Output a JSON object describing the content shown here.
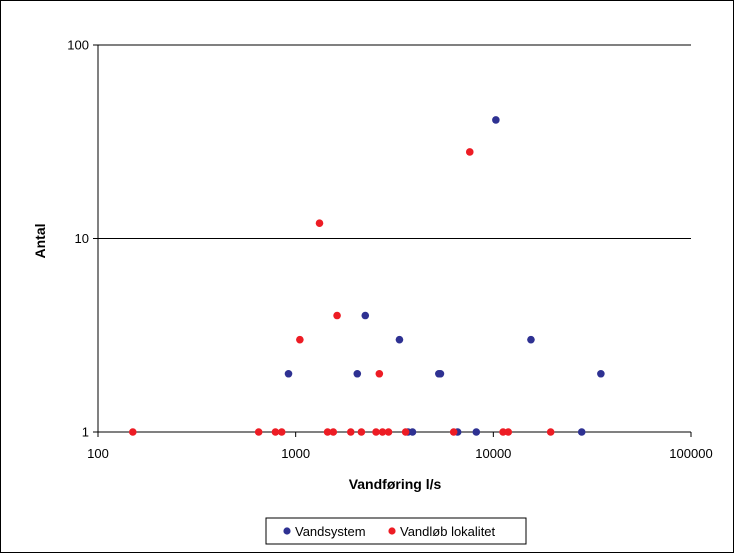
{
  "chart_data": {
    "type": "scatter",
    "title": "",
    "xlabel": "Vandføring l/s",
    "ylabel": "Antal",
    "x_scale": "log",
    "y_scale": "log",
    "xlim": [
      100,
      100000
    ],
    "ylim": [
      1,
      100
    ],
    "x_ticks": [
      100,
      1000,
      10000,
      100000
    ],
    "x_tick_labels": [
      "100",
      "1000",
      "10000",
      "100000"
    ],
    "y_ticks": [
      1,
      10,
      100
    ],
    "y_tick_labels": [
      "1",
      "10",
      "100"
    ],
    "grid": "horizontal major gridlines",
    "legend_position": "bottom",
    "series": [
      {
        "name": "Vandsystem",
        "color": "#2e3192",
        "points": [
          {
            "x": 920,
            "y": 2
          },
          {
            "x": 2050,
            "y": 2
          },
          {
            "x": 2250,
            "y": 4
          },
          {
            "x": 3350,
            "y": 3
          },
          {
            "x": 3700,
            "y": 1
          },
          {
            "x": 3900,
            "y": 1
          },
          {
            "x": 5300,
            "y": 2
          },
          {
            "x": 5400,
            "y": 2
          },
          {
            "x": 6600,
            "y": 1
          },
          {
            "x": 8200,
            "y": 1
          },
          {
            "x": 10300,
            "y": 41
          },
          {
            "x": 15500,
            "y": 3
          },
          {
            "x": 28000,
            "y": 1
          },
          {
            "x": 35000,
            "y": 2
          }
        ]
      },
      {
        "name": "Vandløb lokalitet",
        "color": "#ed1c24",
        "points": [
          {
            "x": 150,
            "y": 1
          },
          {
            "x": 650,
            "y": 1
          },
          {
            "x": 790,
            "y": 1
          },
          {
            "x": 850,
            "y": 1
          },
          {
            "x": 1050,
            "y": 3
          },
          {
            "x": 1320,
            "y": 12
          },
          {
            "x": 1450,
            "y": 1
          },
          {
            "x": 1550,
            "y": 1
          },
          {
            "x": 1620,
            "y": 4
          },
          {
            "x": 1900,
            "y": 1
          },
          {
            "x": 2150,
            "y": 1
          },
          {
            "x": 2550,
            "y": 1
          },
          {
            "x": 2650,
            "y": 2
          },
          {
            "x": 2750,
            "y": 1
          },
          {
            "x": 2950,
            "y": 1
          },
          {
            "x": 3600,
            "y": 1
          },
          {
            "x": 6300,
            "y": 1
          },
          {
            "x": 7600,
            "y": 28
          },
          {
            "x": 11200,
            "y": 1
          },
          {
            "x": 11900,
            "y": 1
          },
          {
            "x": 19500,
            "y": 1
          }
        ]
      }
    ]
  }
}
